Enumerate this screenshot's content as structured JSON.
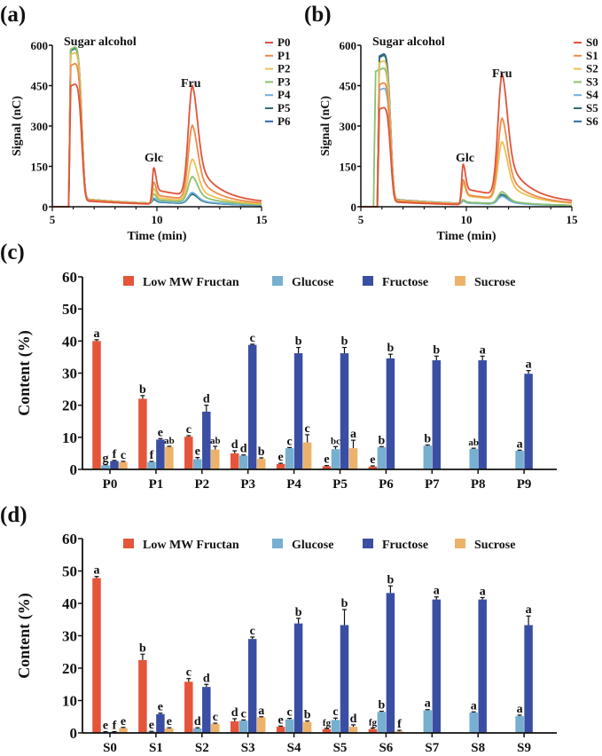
{
  "panels": {
    "a": "(a)",
    "b": "(b)",
    "c": "(c)",
    "d": "(d)"
  },
  "chart_data": [
    {
      "id": "a",
      "type": "line",
      "xlabel": "Time (min)",
      "ylabel": "Signal (nC)",
      "xlim": [
        5,
        15
      ],
      "ylim": [
        0,
        600
      ],
      "xticks": [
        5,
        10,
        15
      ],
      "yticks": [
        0,
        150,
        300,
        450,
        600
      ],
      "annotations": [
        "Sugar alcohol",
        "Glc",
        "Fru"
      ],
      "legend": "right",
      "series": [
        {
          "name": "P0",
          "color": "#e0533a",
          "peaks": {
            "sugar_alcohol": 445,
            "glc": 135,
            "fru": 410
          }
        },
        {
          "name": "P1",
          "color": "#ee8a4a",
          "peaks": {
            "sugar_alcohol": 520,
            "glc": 80,
            "fru": 275
          }
        },
        {
          "name": "P2",
          "color": "#e8c257",
          "peaks": {
            "sugar_alcohol": 560,
            "glc": 55,
            "fru": 155
          }
        },
        {
          "name": "P3",
          "color": "#8cbf6e",
          "peaks": {
            "sugar_alcohol": 580,
            "glc": 35,
            "fru": 95
          }
        },
        {
          "name": "P4",
          "color": "#6fb0e0",
          "peaks": {
            "sugar_alcohol": 580,
            "glc": 20,
            "fru": 40
          }
        },
        {
          "name": "P5",
          "color": "#2e6e6a",
          "peaks": {
            "sugar_alcohol": 575,
            "glc": 15,
            "fru": 35
          }
        },
        {
          "name": "P6",
          "color": "#2f66a8",
          "peaks": {
            "sugar_alcohol": 575,
            "glc": 15,
            "fru": 35
          }
        }
      ]
    },
    {
      "id": "b",
      "type": "line",
      "xlabel": "Time (min)",
      "ylabel": "Signal (nC)",
      "xlim": [
        5,
        15
      ],
      "ylim": [
        0,
        600
      ],
      "xticks": [
        5,
        10,
        15
      ],
      "yticks": [
        0,
        150,
        300,
        450,
        600
      ],
      "annotations": [
        "Sugar alcohol",
        "Glc",
        "Fru"
      ],
      "legend": "right",
      "series": [
        {
          "name": "S0",
          "color": "#e0533a",
          "peaks": {
            "sugar_alcohol": 360,
            "glc": 150,
            "fru": 450
          }
        },
        {
          "name": "S1",
          "color": "#ee8a4a",
          "peaks": {
            "sugar_alcohol": 450,
            "glc": 90,
            "fru": 300
          }
        },
        {
          "name": "S2",
          "color": "#e8c257",
          "peaks": {
            "sugar_alcohol": 530,
            "glc": 75,
            "fru": 215
          }
        },
        {
          "name": "S3",
          "color": "#8cbf6e",
          "peaks": {
            "sugar_alcohol": 500,
            "glc": 15,
            "fru": 45
          }
        },
        {
          "name": "S4",
          "color": "#6fb0e0",
          "peaks": {
            "sugar_alcohol": 430,
            "glc": 12,
            "fru": 30
          }
        },
        {
          "name": "S5",
          "color": "#2e6e6a",
          "peaks": {
            "sugar_alcohol": 550,
            "glc": 12,
            "fru": 35
          }
        },
        {
          "name": "S6",
          "color": "#2f66a8",
          "peaks": {
            "sugar_alcohol": 555,
            "glc": 12,
            "fru": 30
          }
        }
      ]
    },
    {
      "id": "c",
      "type": "bar",
      "ylabel": "Content (%)",
      "xlabel": "",
      "ylim": [
        0,
        60
      ],
      "yticks": [
        0,
        10,
        20,
        30,
        40,
        50,
        60
      ],
      "legend": "top",
      "categories": [
        "P0",
        "P1",
        "P2",
        "P3",
        "P4",
        "P5",
        "P6",
        "P7",
        "P8",
        "P9"
      ],
      "series": [
        {
          "name": "Low MW Fructan",
          "color": "#e4553a",
          "values": [
            40.0,
            22.0,
            10.2,
            5.0,
            1.7,
            1.0,
            0.9,
            null,
            null,
            null
          ],
          "errors": [
            0.4,
            1.0,
            0.3,
            0.8,
            0.2,
            0.2,
            0.2,
            null,
            null,
            null
          ],
          "letters": [
            "a",
            "b",
            "c",
            "d",
            "e",
            "e",
            "e",
            null,
            null,
            null
          ]
        },
        {
          "name": "Glucose",
          "color": "#76afd0",
          "values": [
            1.3,
            2.3,
            3.2,
            4.3,
            6.6,
            6.3,
            6.9,
            7.4,
            6.4,
            5.8
          ],
          "errors": [
            0.2,
            0.2,
            0.5,
            0.2,
            0.2,
            0.8,
            0.2,
            0.2,
            0.2,
            0.2
          ],
          "letters": [
            "g",
            "f",
            "e",
            "d",
            "c",
            "bc",
            "b",
            "b",
            "ab",
            "a"
          ]
        },
        {
          "name": "Fructose",
          "color": "#3a4fa3",
          "values": [
            2.6,
            9.3,
            18.0,
            38.8,
            36.2,
            36.2,
            34.6,
            34.0,
            34.0,
            29.8
          ],
          "errors": [
            0.2,
            0.3,
            2.0,
            0.2,
            1.8,
            1.8,
            1.3,
            1.3,
            1.3,
            1.0
          ],
          "letters": [
            "f",
            "e",
            "d",
            "c",
            "b",
            "b",
            "b",
            "b",
            "a",
            "a"
          ]
        },
        {
          "name": "Sucrose",
          "color": "#edb26a",
          "values": [
            2.3,
            7.0,
            6.2,
            3.3,
            8.4,
            6.6,
            null,
            null,
            null,
            null
          ],
          "errors": [
            0.2,
            0.2,
            1.0,
            0.3,
            2.4,
            2.5,
            null,
            null,
            null,
            null
          ],
          "letters": [
            "c",
            "ab",
            "ab",
            "b",
            "c",
            "a",
            null,
            null,
            null,
            null
          ]
        }
      ]
    },
    {
      "id": "d",
      "type": "bar",
      "ylabel": "Content (%)",
      "xlabel": "",
      "ylim": [
        0,
        60
      ],
      "yticks": [
        0,
        10,
        20,
        30,
        40,
        50,
        60
      ],
      "legend": "top",
      "categories": [
        "S0",
        "S1",
        "S2",
        "S3",
        "S4",
        "S5",
        "S6",
        "S7",
        "S8",
        "S9"
      ],
      "series": [
        {
          "name": "Low MW Fructan",
          "color": "#e4553a",
          "values": [
            47.8,
            22.5,
            15.8,
            3.6,
            1.9,
            1.2,
            1.2,
            null,
            null,
            null
          ],
          "errors": [
            0.5,
            1.8,
            1.0,
            0.8,
            0.2,
            0.2,
            0.3,
            null,
            null,
            null
          ],
          "letters": [
            "a",
            "b",
            "c",
            "d",
            "e",
            "fg",
            "fg",
            null,
            null,
            null
          ]
        },
        {
          "name": "Glucose",
          "color": "#76afd0",
          "values": [
            0.3,
            0.4,
            1.4,
            3.8,
            4.2,
            4.0,
            6.5,
            7.0,
            6.3,
            5.2
          ],
          "errors": [
            0.1,
            0.1,
            0.2,
            0.2,
            0.3,
            0.6,
            0.2,
            0.2,
            0.2,
            0.3
          ],
          "letters": [
            "e",
            "e",
            "d",
            "c",
            "c",
            "c",
            "b",
            "a",
            "a",
            "a"
          ]
        },
        {
          "name": "Fructose",
          "color": "#3a4fa3",
          "values": [
            0.3,
            5.8,
            14.2,
            29.0,
            33.8,
            33.3,
            43.2,
            41.2,
            41.2,
            33.3
          ],
          "errors": [
            0.1,
            0.3,
            0.8,
            0.6,
            1.6,
            4.8,
            2.2,
            0.8,
            0.6,
            2.8
          ],
          "letters": [
            "f",
            "e",
            "d",
            "c",
            "b",
            "b",
            "b",
            "a",
            "a",
            "a"
          ]
        },
        {
          "name": "Sucrose",
          "color": "#edb26a",
          "values": [
            1.5,
            1.4,
            2.8,
            4.8,
            3.4,
            1.9,
            0.5,
            null,
            null,
            null
          ],
          "errors": [
            0.2,
            0.2,
            0.2,
            0.2,
            0.3,
            0.6,
            0.3,
            null,
            null,
            null
          ],
          "letters": [
            "e",
            "e",
            "c",
            "a",
            "b",
            "d",
            "f",
            null,
            null,
            null
          ]
        }
      ]
    }
  ]
}
